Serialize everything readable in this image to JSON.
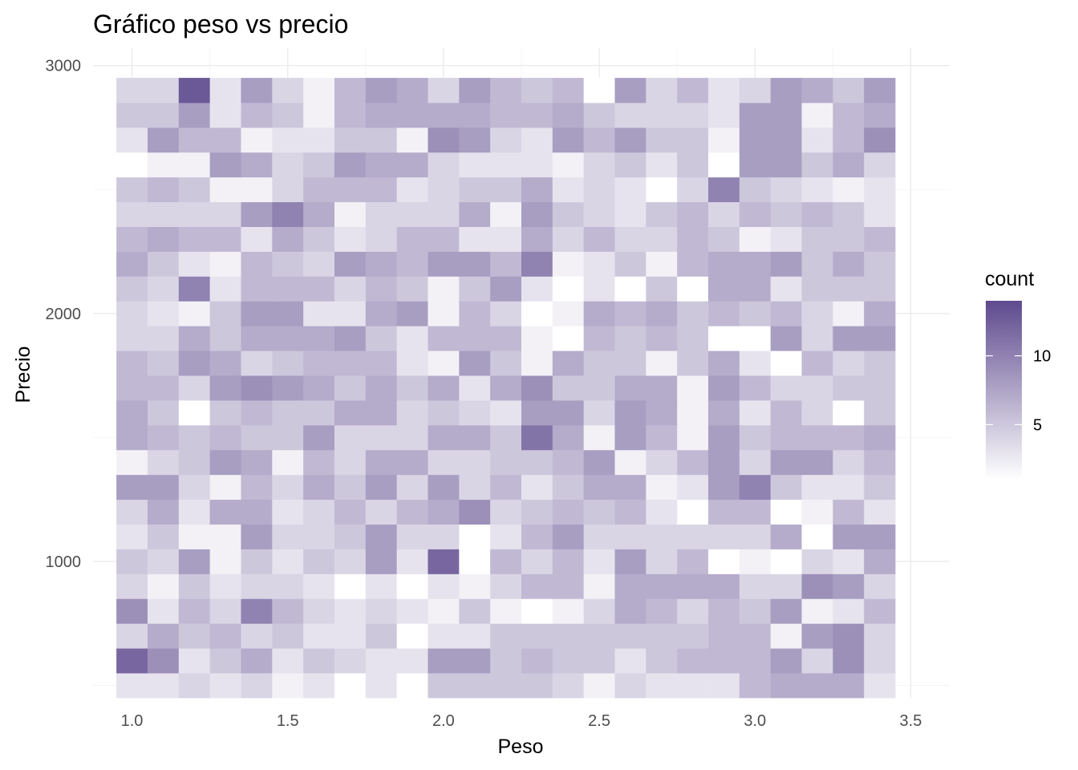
{
  "chart_data": {
    "type": "heatmap",
    "title": "Gráfico peso vs precio",
    "xlabel": "Peso",
    "ylabel": "Precio",
    "xlim": [
      0.875,
      3.625
    ],
    "ylim": [
      450,
      3070
    ],
    "x_ticks": [
      1.0,
      1.5,
      2.0,
      2.5,
      3.0,
      3.5
    ],
    "x_tick_labels": [
      "1.0",
      "1.5",
      "2.0",
      "2.5",
      "3.0",
      "3.5"
    ],
    "y_ticks": [
      1000,
      2000,
      3000
    ],
    "y_tick_labels": [
      "1000",
      "2000",
      "3000"
    ],
    "x_bins": {
      "start": 0.95,
      "width": 0.1,
      "count": 25
    },
    "y_bins": {
      "start": 450,
      "width": 100,
      "count": 25
    },
    "count_range": [
      1,
      14
    ],
    "legend": {
      "title": "count",
      "position": "right",
      "ticks": [
        5,
        10
      ],
      "tick_labels": [
        "5",
        "10"
      ],
      "color_low": "#ffffff",
      "color_high": "#5e4a8e"
    },
    "grid": true,
    "counts_rows_bottom_to_top": [
      [
        3,
        3,
        4,
        3,
        4,
        2,
        3,
        1,
        3,
        1,
        5,
        5,
        5,
        5,
        4,
        2,
        4,
        3,
        3,
        3,
        6,
        7,
        7,
        7,
        3
      ],
      [
        12,
        9,
        3,
        5,
        7,
        3,
        5,
        4,
        3,
        3,
        8,
        8,
        5,
        6,
        5,
        5,
        3,
        5,
        6,
        6,
        6,
        8,
        4,
        9,
        4
      ],
      [
        4,
        7,
        5,
        6,
        4,
        5,
        3,
        3,
        5,
        1,
        3,
        3,
        5,
        5,
        5,
        5,
        5,
        5,
        5,
        6,
        6,
        2,
        8,
        9,
        4
      ],
      [
        9,
        3,
        6,
        4,
        10,
        6,
        4,
        3,
        4,
        3,
        2,
        5,
        2,
        1,
        2,
        4,
        7,
        6,
        4,
        6,
        5,
        8,
        2,
        3,
        6
      ],
      [
        4,
        2,
        5,
        3,
        4,
        4,
        3,
        1,
        3,
        1,
        3,
        2,
        4,
        6,
        6,
        2,
        7,
        7,
        7,
        7,
        4,
        4,
        9,
        8,
        4
      ],
      [
        5,
        4,
        8,
        2,
        5,
        3,
        5,
        4,
        8,
        3,
        12,
        1,
        6,
        4,
        6,
        3,
        8,
        4,
        6,
        1,
        2,
        1,
        4,
        3,
        7
      ],
      [
        3,
        5,
        2,
        2,
        8,
        4,
        4,
        5,
        8,
        4,
        4,
        1,
        3,
        6,
        8,
        4,
        4,
        4,
        4,
        4,
        4,
        7,
        1,
        8,
        8
      ],
      [
        4,
        7,
        3,
        7,
        7,
        3,
        4,
        6,
        4,
        6,
        7,
        9,
        4,
        5,
        6,
        5,
        6,
        3,
        1,
        6,
        6,
        1,
        2,
        6,
        3
      ],
      [
        8,
        8,
        4,
        2,
        6,
        4,
        7,
        5,
        8,
        4,
        8,
        4,
        6,
        3,
        5,
        7,
        7,
        2,
        3,
        8,
        10,
        5,
        3,
        3,
        5
      ],
      [
        2,
        4,
        5,
        8,
        7,
        2,
        6,
        4,
        7,
        7,
        4,
        4,
        5,
        5,
        6,
        8,
        2,
        4,
        6,
        8,
        4,
        8,
        8,
        4,
        6
      ],
      [
        7,
        6,
        5,
        6,
        5,
        5,
        8,
        4,
        4,
        4,
        7,
        7,
        5,
        11,
        7,
        2,
        8,
        6,
        2,
        8,
        5,
        6,
        6,
        6,
        7
      ],
      [
        7,
        5,
        1,
        5,
        6,
        5,
        5,
        7,
        7,
        4,
        5,
        4,
        3,
        8,
        8,
        4,
        8,
        7,
        2,
        7,
        3,
        6,
        4,
        1,
        5
      ],
      [
        6,
        6,
        4,
        8,
        9,
        8,
        7,
        5,
        7,
        5,
        7,
        3,
        7,
        9,
        5,
        5,
        7,
        7,
        2,
        8,
        6,
        4,
        4,
        5,
        5
      ],
      [
        6,
        5,
        8,
        7,
        4,
        5,
        6,
        6,
        6,
        3,
        2,
        8,
        5,
        2,
        7,
        5,
        5,
        2,
        5,
        7,
        3,
        1,
        6,
        4,
        5
      ],
      [
        4,
        4,
        7,
        5,
        7,
        7,
        7,
        8,
        5,
        3,
        6,
        6,
        6,
        2,
        1,
        6,
        5,
        6,
        5,
        1,
        1,
        8,
        4,
        8,
        8
      ],
      [
        4,
        3,
        2,
        5,
        8,
        8,
        3,
        3,
        7,
        8,
        2,
        6,
        4,
        1,
        2,
        7,
        6,
        7,
        5,
        6,
        5,
        6,
        4,
        2,
        7
      ],
      [
        5,
        4,
        10,
        3,
        6,
        6,
        6,
        4,
        6,
        5,
        2,
        5,
        8,
        3,
        1,
        3,
        1,
        5,
        1,
        7,
        7,
        3,
        5,
        5,
        5
      ],
      [
        7,
        5,
        3,
        2,
        6,
        5,
        4,
        8,
        7,
        6,
        8,
        8,
        6,
        10,
        2,
        3,
        5,
        2,
        6,
        7,
        7,
        8,
        5,
        7,
        5
      ],
      [
        6,
        7,
        6,
        6,
        3,
        7,
        5,
        3,
        4,
        6,
        6,
        3,
        3,
        7,
        4,
        6,
        4,
        4,
        6,
        5,
        2,
        3,
        5,
        5,
        6
      ],
      [
        4,
        4,
        4,
        4,
        8,
        10,
        7,
        2,
        4,
        4,
        4,
        7,
        2,
        8,
        5,
        4,
        3,
        5,
        6,
        4,
        6,
        5,
        6,
        5,
        3
      ],
      [
        5,
        6,
        5,
        2,
        2,
        4,
        6,
        6,
        6,
        3,
        4,
        5,
        5,
        7,
        3,
        4,
        3,
        1,
        4,
        10,
        5,
        4,
        3,
        2,
        3
      ],
      [
        1,
        2,
        2,
        8,
        7,
        4,
        5,
        8,
        7,
        7,
        4,
        3,
        3,
        3,
        2,
        4,
        5,
        3,
        5,
        1,
        8,
        8,
        5,
        7,
        4
      ],
      [
        3,
        8,
        6,
        6,
        2,
        3,
        3,
        5,
        5,
        2,
        9,
        8,
        4,
        3,
        8,
        6,
        8,
        5,
        5,
        2,
        8,
        8,
        3,
        6,
        9
      ],
      [
        5,
        5,
        8,
        3,
        6,
        5,
        2,
        6,
        7,
        7,
        7,
        7,
        6,
        6,
        7,
        5,
        4,
        4,
        4,
        3,
        8,
        8,
        2,
        6,
        7
      ],
      [
        4,
        4,
        13,
        3,
        8,
        4,
        2,
        6,
        8,
        7,
        4,
        8,
        6,
        5,
        6,
        1,
        8,
        4,
        6,
        3,
        4,
        8,
        7,
        5,
        8
      ]
    ]
  }
}
